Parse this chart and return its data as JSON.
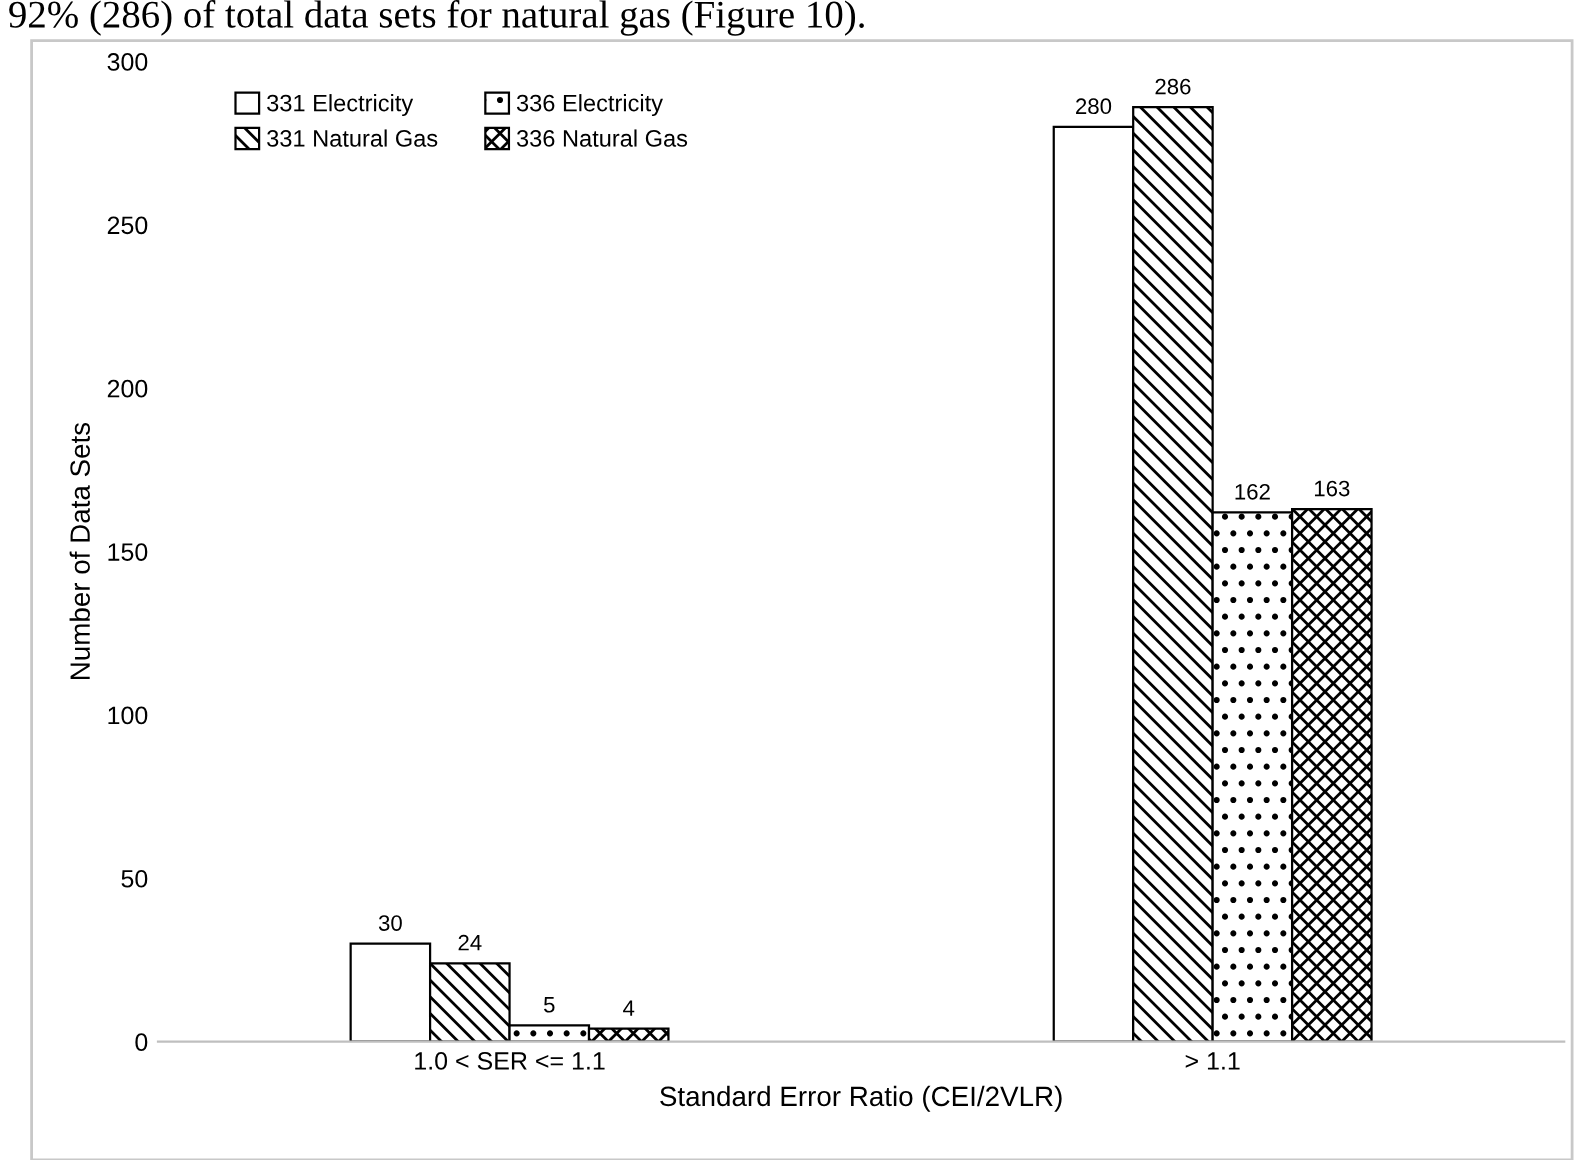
{
  "chart_data": {
    "type": "bar",
    "title": "92% (286) of total data sets for natural gas (Figure 10).",
    "xlabel": "Standard Error Ratio (CEI/2VLR)",
    "ylabel": "Number of Data Sets",
    "categories": [
      "1.0 < SER <= 1.1",
      "> 1.1"
    ],
    "series": [
      {
        "name": "331 Electricity",
        "color": "#ffffff",
        "values": [
          30,
          280
        ]
      },
      {
        "name": "331 Natural Gas",
        "color": "#000000",
        "values": [
          24,
          286
        ]
      },
      {
        "name": "336 Electricity",
        "color": "#000000",
        "values": [
          5,
          162
        ]
      },
      {
        "name": "336 Natural Gas",
        "color": "#000000",
        "values": [
          4,
          163
        ]
      }
    ],
    "ylim": [
      0,
      300
    ],
    "yticks": [
      0,
      50,
      100,
      150,
      200,
      250,
      300
    ],
    "data_labels": true,
    "legend": "top left",
    "grid": false
  }
}
